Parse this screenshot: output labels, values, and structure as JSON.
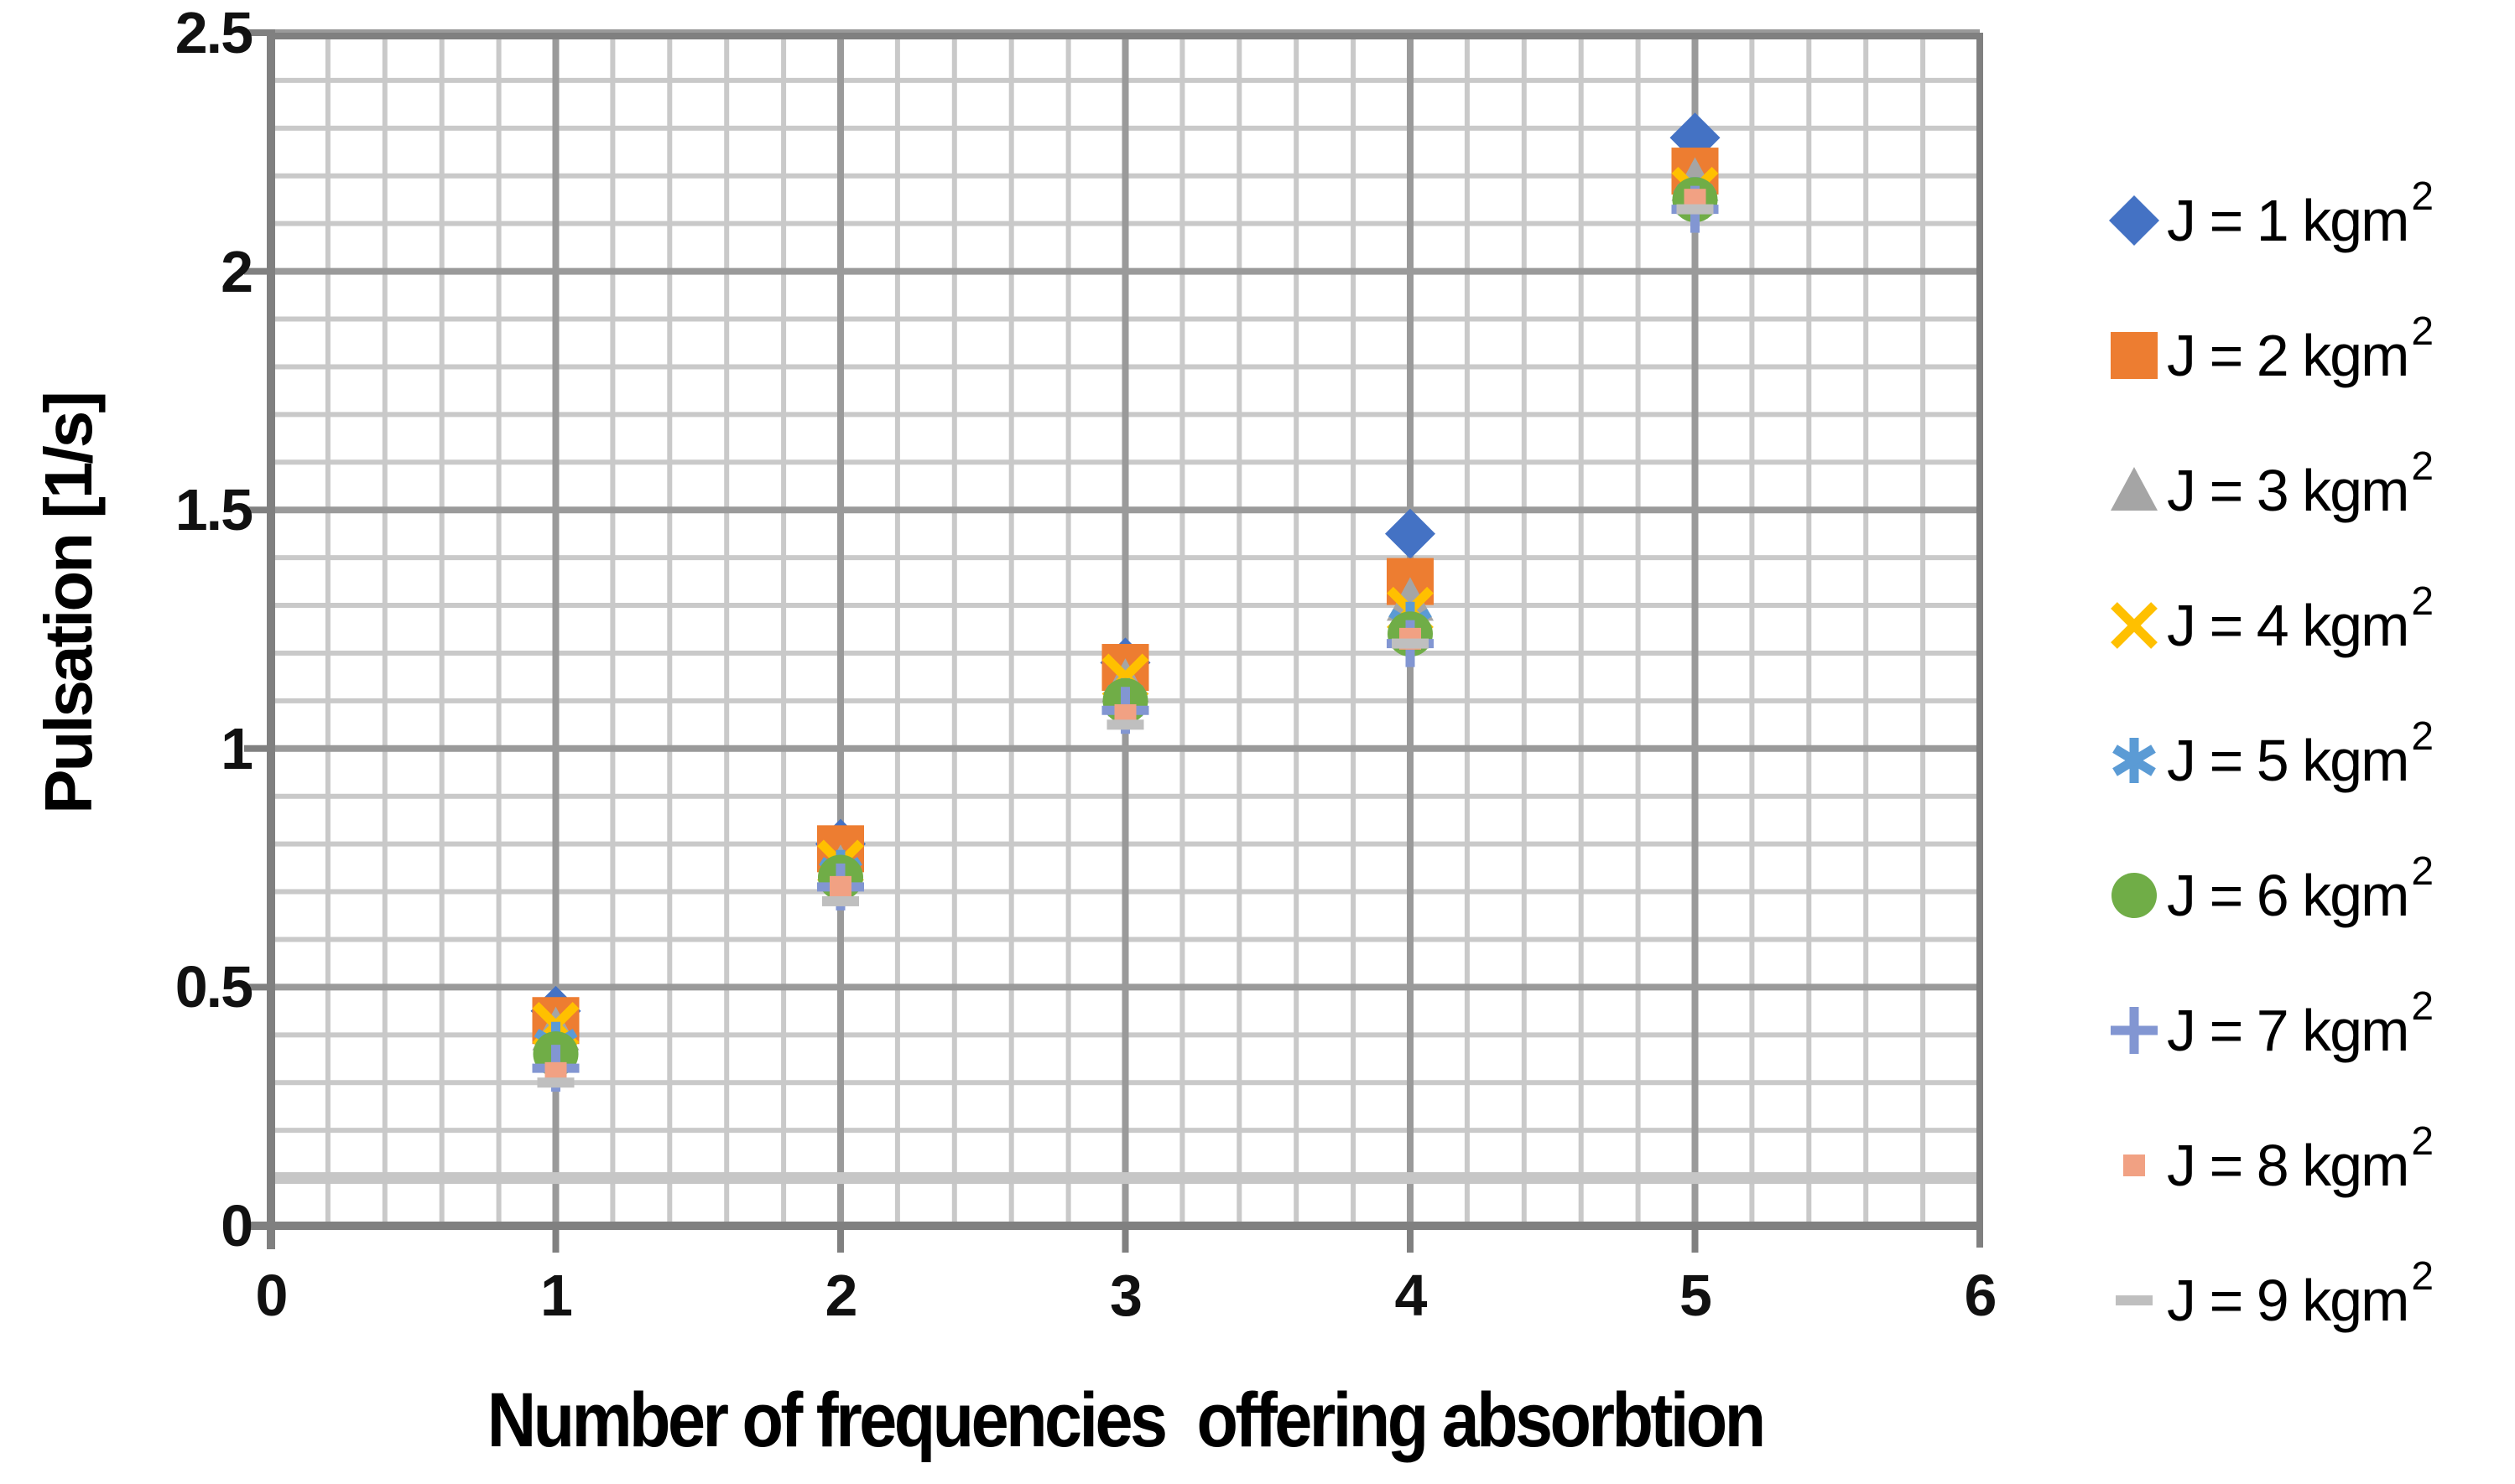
{
  "chart_data": {
    "type": "scatter",
    "title": "",
    "xlabel": "Number of frequencies  offering absorbtion",
    "ylabel": "Pulsation [1/s]",
    "x_range": [
      0,
      6
    ],
    "y_range": [
      0,
      2.5
    ],
    "x_major_step": 1,
    "x_minor_step": 0.2,
    "y_major_step": 0.5,
    "y_minor_step": 0.1,
    "x_tick_labels": [
      "0",
      "1",
      "2",
      "3",
      "4",
      "5",
      "6"
    ],
    "y_tick_labels": [
      "0",
      "0.5",
      "1",
      "1.5",
      "2",
      "2.5"
    ],
    "grid": "major-and-minor",
    "legend_position": "right",
    "x": [
      1,
      2,
      3,
      4,
      5
    ],
    "series": [
      {
        "name": "J = 1 kgm²",
        "label": "J = 1 kgm",
        "sup": "2",
        "marker": "diamond",
        "color": "#4472C4",
        "values": [
          0.45,
          0.8,
          1.18,
          1.45,
          2.28
        ]
      },
      {
        "name": "J = 2 kgm²",
        "label": "J = 2 kgm",
        "sup": "2",
        "marker": "square",
        "color": "#ED7D31",
        "values": [
          0.43,
          0.79,
          1.17,
          1.35,
          2.21
        ]
      },
      {
        "name": "J = 3 kgm²",
        "label": "J = 3 kgm",
        "sup": "2",
        "marker": "triangle",
        "color": "#A5A5A5",
        "values": [
          0.41,
          0.75,
          1.14,
          1.31,
          2.19
        ]
      },
      {
        "name": "J = 4 kgm²",
        "label": "J = 4 kgm",
        "sup": "2",
        "marker": "x",
        "color": "#FFC000",
        "values": [
          0.42,
          0.76,
          1.15,
          1.29,
          2.17
        ]
      },
      {
        "name": "J = 5 kgm²",
        "label": "J = 5 kgm",
        "sup": "2",
        "marker": "asterisk",
        "color": "#5B9BD5",
        "values": [
          0.38,
          0.74,
          1.1,
          1.26,
          2.15
        ]
      },
      {
        "name": "J = 6 kgm²",
        "label": "J = 6 kgm",
        "sup": "2",
        "marker": "circle",
        "color": "#70AD47",
        "values": [
          0.36,
          0.73,
          1.1,
          1.24,
          2.15
        ]
      },
      {
        "name": "J = 7 kgm²",
        "label": "J = 7 kgm",
        "sup": "2",
        "marker": "plus",
        "color": "#8296D2",
        "values": [
          0.33,
          0.71,
          1.08,
          1.22,
          2.13
        ]
      },
      {
        "name": "J = 8 kgm²",
        "label": "J = 8 kgm",
        "sup": "2",
        "marker": "small-square",
        "color": "#F1A183",
        "values": [
          0.32,
          0.71,
          1.07,
          1.23,
          2.15
        ]
      },
      {
        "name": "J = 9 kgm²",
        "label": "J = 9 kgm",
        "sup": "2",
        "marker": "dash",
        "color": "#BFBFBF",
        "values": [
          0.3,
          0.68,
          1.05,
          1.22,
          2.13
        ]
      }
    ],
    "reference_line": {
      "y": 0.1,
      "color": "#C6C6C6",
      "thickness": 14
    },
    "axis_color": "#808080",
    "major_grid_color": "#9A9A9A",
    "minor_grid_color": "#C9C9C9"
  }
}
